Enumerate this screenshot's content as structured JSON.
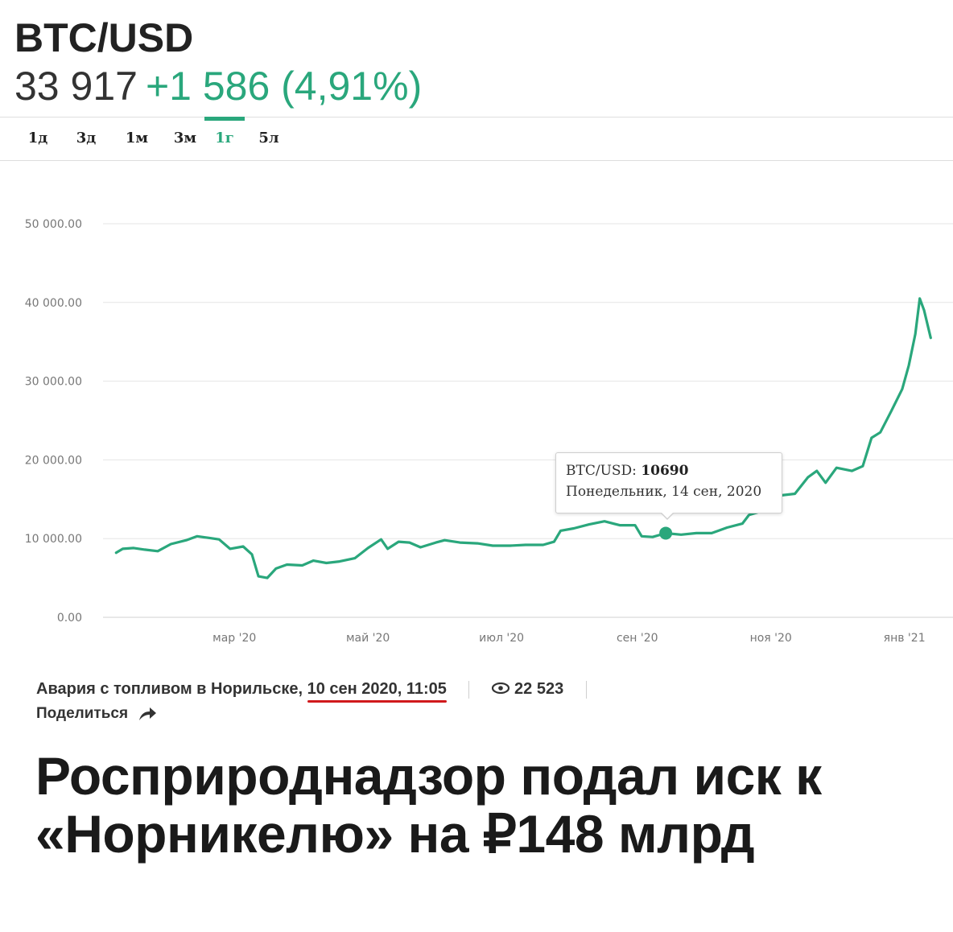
{
  "ticker": {
    "title": "BTC/USD",
    "price": "33 917",
    "change": "+1 586 (4,91%)",
    "accent_color": "#2aa77c"
  },
  "tabs": [
    {
      "label": "1д",
      "active": false
    },
    {
      "label": "3д",
      "active": false
    },
    {
      "label": "1м",
      "active": false
    },
    {
      "label": "3м",
      "active": false
    },
    {
      "label": "1г",
      "active": true
    },
    {
      "label": "5л",
      "active": false
    }
  ],
  "chart_data": {
    "type": "line",
    "title": "",
    "xlabel": "",
    "ylabel": "",
    "ylim": [
      0,
      50000
    ],
    "xlim": [
      "2020-01-01",
      "2021-01-14"
    ],
    "grid": true,
    "y_ticks": [
      "0.00",
      "10 000.00",
      "20 000.00",
      "30 000.00",
      "40 000.00",
      "50 000.00"
    ],
    "x_ticks": [
      {
        "label": "мар '20",
        "date": "2020-03-01"
      },
      {
        "label": "май '20",
        "date": "2020-05-01"
      },
      {
        "label": "июл '20",
        "date": "2020-07-01"
      },
      {
        "label": "сен '20",
        "date": "2020-09-01"
      },
      {
        "label": "ноя '20",
        "date": "2020-11-01"
      },
      {
        "label": "янв '21",
        "date": "2021-01-01"
      }
    ],
    "series": [
      {
        "color": "#2aa77c",
        "points": [
          [
            "2020-01-07",
            8200
          ],
          [
            "2020-01-10",
            8700
          ],
          [
            "2020-01-15",
            8800
          ],
          [
            "2020-01-20",
            8600
          ],
          [
            "2020-01-26",
            8400
          ],
          [
            "2020-02-01",
            9300
          ],
          [
            "2020-02-08",
            9800
          ],
          [
            "2020-02-13",
            10300
          ],
          [
            "2020-02-18",
            10100
          ],
          [
            "2020-02-23",
            9900
          ],
          [
            "2020-02-28",
            8700
          ],
          [
            "2020-03-05",
            9000
          ],
          [
            "2020-03-09",
            8000
          ],
          [
            "2020-03-12",
            5200
          ],
          [
            "2020-03-16",
            5000
          ],
          [
            "2020-03-20",
            6200
          ],
          [
            "2020-03-25",
            6700
          ],
          [
            "2020-04-01",
            6600
          ],
          [
            "2020-04-06",
            7200
          ],
          [
            "2020-04-12",
            6900
          ],
          [
            "2020-04-18",
            7100
          ],
          [
            "2020-04-25",
            7500
          ],
          [
            "2020-05-01",
            8800
          ],
          [
            "2020-05-07",
            9900
          ],
          [
            "2020-05-10",
            8700
          ],
          [
            "2020-05-15",
            9600
          ],
          [
            "2020-05-20",
            9500
          ],
          [
            "2020-05-25",
            8900
          ],
          [
            "2020-06-01",
            9500
          ],
          [
            "2020-06-05",
            9800
          ],
          [
            "2020-06-12",
            9500
          ],
          [
            "2020-06-20",
            9400
          ],
          [
            "2020-06-27",
            9100
          ],
          [
            "2020-07-05",
            9100
          ],
          [
            "2020-07-12",
            9200
          ],
          [
            "2020-07-20",
            9200
          ],
          [
            "2020-07-25",
            9600
          ],
          [
            "2020-07-28",
            11000
          ],
          [
            "2020-08-03",
            11300
          ],
          [
            "2020-08-10",
            11800
          ],
          [
            "2020-08-17",
            12200
          ],
          [
            "2020-08-24",
            11700
          ],
          [
            "2020-08-31",
            11700
          ],
          [
            "2020-09-03",
            10300
          ],
          [
            "2020-09-08",
            10200
          ],
          [
            "2020-09-14",
            10690
          ],
          [
            "2020-09-21",
            10500
          ],
          [
            "2020-09-28",
            10700
          ],
          [
            "2020-10-05",
            10700
          ],
          [
            "2020-10-12",
            11400
          ],
          [
            "2020-10-19",
            11900
          ],
          [
            "2020-10-22",
            13000
          ],
          [
            "2020-10-28",
            13500
          ],
          [
            "2020-11-02",
            13600
          ],
          [
            "2020-11-06",
            15500
          ],
          [
            "2020-11-12",
            15700
          ],
          [
            "2020-11-18",
            17800
          ],
          [
            "2020-11-22",
            18600
          ],
          [
            "2020-11-26",
            17100
          ],
          [
            "2020-12-01",
            19000
          ],
          [
            "2020-12-08",
            18600
          ],
          [
            "2020-12-13",
            19200
          ],
          [
            "2020-12-17",
            22800
          ],
          [
            "2020-12-21",
            23500
          ],
          [
            "2020-12-26",
            26200
          ],
          [
            "2020-12-31",
            29000
          ],
          [
            "2021-01-03",
            32000
          ],
          [
            "2021-01-06",
            36000
          ],
          [
            "2021-01-08",
            40500
          ],
          [
            "2021-01-10",
            39000
          ],
          [
            "2021-01-13",
            35500
          ]
        ]
      }
    ],
    "tooltip": {
      "label": "BTC/USD:",
      "value": "10690",
      "date_text": "Понедельник, 14 сен, 2020",
      "date": "2020-09-14"
    }
  },
  "article": {
    "category": "Авария с топливом в Норильске,",
    "date": "10 сен 2020, 11:05",
    "views": "22 523",
    "share_label": "Поделиться",
    "headline": "Росприроднадзор подал иск к «Норникелю» на ₽148 млрд",
    "underline_color": "#d0191c"
  }
}
